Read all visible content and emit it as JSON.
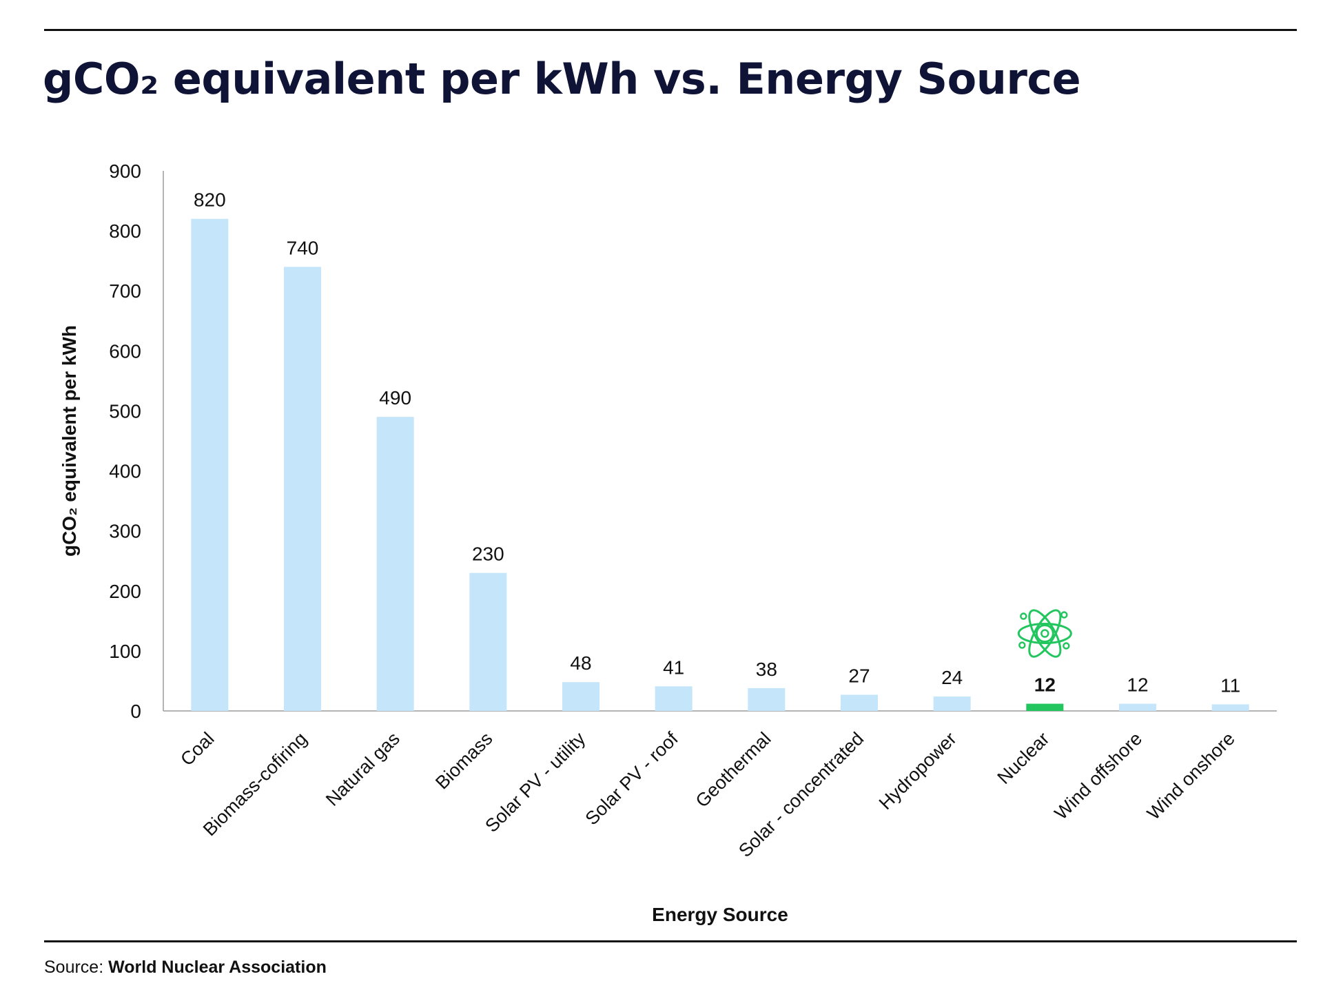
{
  "title": "gCO₂ equivalent per kWh vs. Energy Source",
  "source": {
    "label": "Source:",
    "name": "World Nuclear Association"
  },
  "colors": {
    "bar": "#c5e6fa",
    "highlight": "#22c55e",
    "title": "#0f1436"
  },
  "chart_data": {
    "type": "bar",
    "categories": [
      "Coal",
      "Biomass-cofiring",
      "Natural gas",
      "Biomass",
      "Solar PV - utility",
      "Solar PV - roof",
      "Geothermal",
      "Solar - concentrated",
      "Hydropower",
      "Nuclear",
      "Wind offshore",
      "Wind onshore"
    ],
    "values": [
      820,
      740,
      490,
      230,
      48,
      41,
      38,
      27,
      24,
      12,
      12,
      11
    ],
    "data_labels": [
      "820",
      "740",
      "490",
      "230",
      "48",
      "41",
      "38",
      "27",
      "24",
      "12",
      "12",
      "11"
    ],
    "highlight_category": "Nuclear",
    "highlight_icon": "atom-icon",
    "xlabel": "Energy Source",
    "ylabel": "gCO₂ equivalent per kWh",
    "ylim": [
      0,
      900
    ],
    "yticks": [
      "0",
      "100",
      "200",
      "300",
      "400",
      "500",
      "600",
      "700",
      "800",
      "900"
    ],
    "grid": false,
    "legend": "none"
  }
}
